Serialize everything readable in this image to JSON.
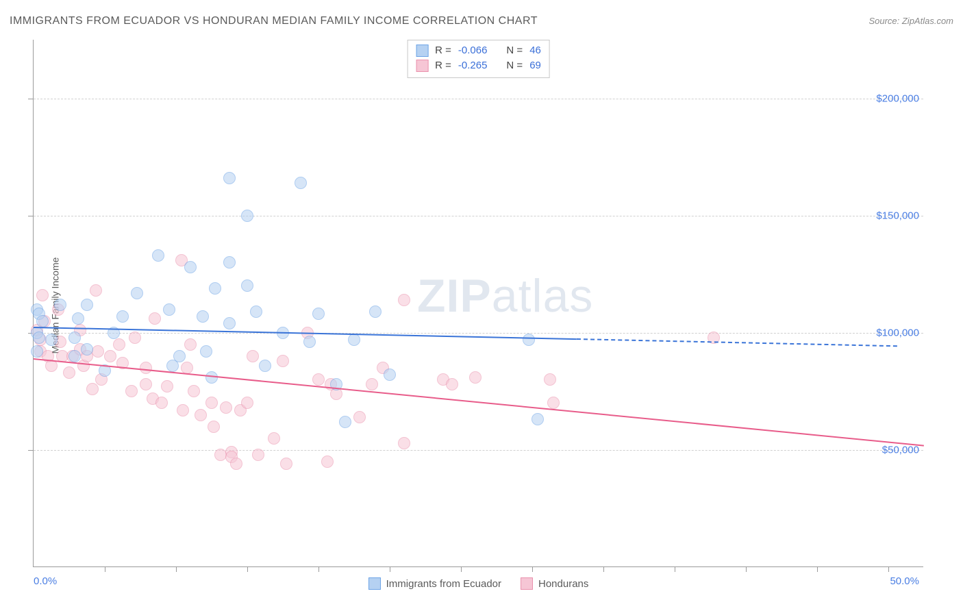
{
  "title": "IMMIGRANTS FROM ECUADOR VS HONDURAN MEDIAN FAMILY INCOME CORRELATION CHART",
  "source": "Source: ZipAtlas.com",
  "watermark_zip": "ZIP",
  "watermark_atlas": "atlas",
  "yaxis_title": "Median Family Income",
  "chart": {
    "type": "scatter",
    "background_color": "#ffffff",
    "grid_color": "#d0d0d0",
    "axis_color": "#9a9a9a",
    "tick_label_color": "#4a7ee3",
    "marker_radius": 9,
    "marker_stroke_width": 1.2,
    "xlim": [
      0,
      50
    ],
    "ylim": [
      0,
      225000
    ],
    "y_gridlines": [
      50000,
      100000,
      150000,
      200000
    ],
    "y_tick_labels": {
      "50000": "$50,000",
      "100000": "$100,000",
      "150000": "$150,000",
      "200000": "$200,000"
    },
    "x_minor_ticks": [
      4,
      8,
      12,
      16,
      20,
      24,
      28,
      32,
      36,
      40,
      44,
      48
    ],
    "x_axis_labels": {
      "0": "0.0%",
      "50": "50.0%"
    },
    "series": [
      {
        "id": "ecuador",
        "label": "Immigrants from Ecuador",
        "fill_color": "#b5d1f2",
        "stroke_color": "#6da4e6",
        "fill_opacity": 0.55,
        "R": "-0.066",
        "N": "46",
        "trend": {
          "color": "#3a74d8",
          "width": 2,
          "x1": 0,
          "y1": 102500,
          "x2": 30.5,
          "y2": 97500,
          "dash_to_x": 48.5,
          "dash_to_y": 94500
        },
        "points": [
          [
            0.2,
            110000
          ],
          [
            0.2,
            100000
          ],
          [
            0.2,
            92000
          ],
          [
            0.3,
            98000
          ],
          [
            0.3,
            108000
          ],
          [
            0.5,
            105000
          ],
          [
            1.0,
            97000
          ],
          [
            1.5,
            112000
          ],
          [
            2.3,
            98000
          ],
          [
            2.5,
            106000
          ],
          [
            2.3,
            90000
          ],
          [
            3.0,
            112000
          ],
          [
            3.0,
            93000
          ],
          [
            4.0,
            84000
          ],
          [
            4.5,
            100000
          ],
          [
            5.0,
            107000
          ],
          [
            5.8,
            117000
          ],
          [
            7.0,
            133000
          ],
          [
            7.6,
            110000
          ],
          [
            7.8,
            86000
          ],
          [
            8.2,
            90000
          ],
          [
            8.8,
            128000
          ],
          [
            9.5,
            107000
          ],
          [
            9.7,
            92000
          ],
          [
            10.2,
            119000
          ],
          [
            10.0,
            81000
          ],
          [
            11.0,
            166000
          ],
          [
            11.0,
            130000
          ],
          [
            11.0,
            104000
          ],
          [
            12.0,
            150000
          ],
          [
            12.0,
            120000
          ],
          [
            12.5,
            109000
          ],
          [
            13.0,
            86000
          ],
          [
            14.0,
            100000
          ],
          [
            15.0,
            164000
          ],
          [
            15.5,
            96000
          ],
          [
            16.0,
            108000
          ],
          [
            17.0,
            78000
          ],
          [
            17.5,
            62000
          ],
          [
            18.0,
            97000
          ],
          [
            19.2,
            109000
          ],
          [
            20.0,
            82000
          ],
          [
            27.8,
            97000
          ],
          [
            28.3,
            63000
          ]
        ]
      },
      {
        "id": "honduran",
        "label": "Hondurans",
        "fill_color": "#f6c6d5",
        "stroke_color": "#ea91ad",
        "fill_opacity": 0.55,
        "R": "-0.265",
        "N": "69",
        "trend": {
          "color": "#e85c8a",
          "width": 2,
          "x1": 0,
          "y1": 89000,
          "x2": 50,
          "y2": 52000
        },
        "points": [
          [
            0.2,
            101000
          ],
          [
            0.4,
            97000
          ],
          [
            0.4,
            92000
          ],
          [
            0.5,
            116000
          ],
          [
            0.6,
            105000
          ],
          [
            0.8,
            90000
          ],
          [
            1.0,
            86000
          ],
          [
            1.4,
            110000
          ],
          [
            1.5,
            96000
          ],
          [
            1.6,
            90000
          ],
          [
            2.0,
            83000
          ],
          [
            2.2,
            90000
          ],
          [
            2.6,
            93000
          ],
          [
            2.6,
            101000
          ],
          [
            2.8,
            86000
          ],
          [
            3.0,
            90000
          ],
          [
            3.3,
            76000
          ],
          [
            3.5,
            118000
          ],
          [
            3.6,
            92000
          ],
          [
            3.8,
            80000
          ],
          [
            4.3,
            90000
          ],
          [
            4.8,
            95000
          ],
          [
            5.0,
            87000
          ],
          [
            5.5,
            75000
          ],
          [
            5.7,
            98000
          ],
          [
            6.3,
            85000
          ],
          [
            6.3,
            78000
          ],
          [
            6.7,
            72000
          ],
          [
            6.8,
            106000
          ],
          [
            7.2,
            70000
          ],
          [
            7.5,
            77000
          ],
          [
            8.3,
            131000
          ],
          [
            8.4,
            67000
          ],
          [
            8.6,
            85000
          ],
          [
            8.8,
            95000
          ],
          [
            9.0,
            75000
          ],
          [
            9.4,
            65000
          ],
          [
            10.0,
            70000
          ],
          [
            10.1,
            60000
          ],
          [
            10.5,
            48000
          ],
          [
            10.8,
            68000
          ],
          [
            11.1,
            49000
          ],
          [
            11.1,
            47000
          ],
          [
            11.4,
            44000
          ],
          [
            11.6,
            67000
          ],
          [
            12.0,
            70000
          ],
          [
            12.3,
            90000
          ],
          [
            12.6,
            48000
          ],
          [
            13.5,
            55000
          ],
          [
            14.0,
            88000
          ],
          [
            14.2,
            44000
          ],
          [
            15.4,
            100000
          ],
          [
            16.0,
            80000
          ],
          [
            16.5,
            45000
          ],
          [
            16.7,
            78000
          ],
          [
            17.0,
            74000
          ],
          [
            18.3,
            64000
          ],
          [
            19.0,
            78000
          ],
          [
            19.6,
            85000
          ],
          [
            20.8,
            114000
          ],
          [
            20.8,
            53000
          ],
          [
            23.0,
            80000
          ],
          [
            23.5,
            78000
          ],
          [
            24.8,
            81000
          ],
          [
            29.0,
            80000
          ],
          [
            29.2,
            70000
          ],
          [
            38.2,
            98000
          ]
        ]
      }
    ]
  },
  "legend_top": {
    "R_label": "R =",
    "N_label": "N ="
  }
}
